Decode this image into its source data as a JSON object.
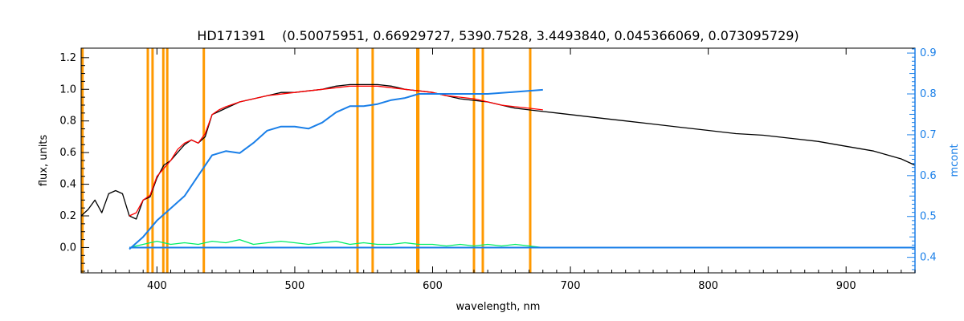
{
  "chart_data": {
    "type": "line",
    "title": "HD171391    (0.50075951, 0.66929727, 5390.7528, 3.4493840, 0.045366069, 0.073095729)",
    "xlabel": "wavelength, nm",
    "ylabel": "flux, units",
    "ylabel_right": "mcont",
    "xlim": [
      345,
      950
    ],
    "ylim": [
      -0.16,
      1.26
    ],
    "ylim_right": [
      0.362,
      0.912
    ],
    "x_ticks": [
      400,
      500,
      600,
      700,
      800,
      900
    ],
    "x_tick_labels": [
      "400",
      "500",
      "600",
      "700",
      "800",
      "900"
    ],
    "y_ticks": [
      0.0,
      0.2,
      0.4,
      0.6,
      0.8,
      1.0,
      1.2
    ],
    "y_tick_labels": [
      "0.0",
      "0.2",
      "0.4",
      "0.6",
      "0.8",
      "1.0",
      "1.2"
    ],
    "y_right_ticks": [
      0.4,
      0.5,
      0.6,
      0.7,
      0.8,
      0.9
    ],
    "y_right_tick_labels": [
      "0.4",
      "0.5",
      "0.6",
      "0.7",
      "0.8",
      "0.9"
    ],
    "grid": false,
    "vertical_lines": {
      "color": "#ff9900",
      "x": [
        346,
        393.4,
        396.8,
        404.6,
        407.5,
        434.0,
        545.5,
        556.5,
        588.9,
        589.6,
        630.0,
        636.4,
        670.8
      ]
    },
    "series": [
      {
        "key": "observed",
        "color": "#000000",
        "x": [
          345,
          350,
          355,
          360,
          365,
          370,
          375,
          380,
          385,
          390,
          395,
          400,
          405,
          410,
          415,
          420,
          425,
          430,
          435,
          440,
          445,
          450,
          460,
          470,
          480,
          490,
          500,
          510,
          520,
          530,
          540,
          550,
          560,
          570,
          580,
          590,
          600,
          610,
          620,
          630,
          640,
          650,
          660,
          670,
          680,
          690,
          700,
          720,
          740,
          760,
          780,
          800,
          820,
          840,
          860,
          880,
          900,
          920,
          940,
          950
        ],
        "y": [
          0.2,
          0.24,
          0.3,
          0.22,
          0.34,
          0.36,
          0.34,
          0.2,
          0.18,
          0.3,
          0.32,
          0.44,
          0.52,
          0.55,
          0.6,
          0.65,
          0.68,
          0.66,
          0.7,
          0.84,
          0.86,
          0.88,
          0.92,
          0.94,
          0.96,
          0.98,
          0.98,
          0.99,
          1.0,
          1.02,
          1.03,
          1.03,
          1.03,
          1.02,
          1.0,
          0.99,
          0.98,
          0.96,
          0.94,
          0.93,
          0.92,
          0.9,
          0.88,
          0.87,
          0.86,
          0.85,
          0.84,
          0.82,
          0.8,
          0.78,
          0.76,
          0.74,
          0.72,
          0.71,
          0.69,
          0.67,
          0.64,
          0.61,
          0.56,
          0.52
        ]
      },
      {
        "key": "model",
        "color": "#ff0000",
        "x": [
          380,
          385,
          390,
          395,
          400,
          405,
          410,
          415,
          420,
          425,
          430,
          435,
          440,
          445,
          450,
          460,
          470,
          480,
          490,
          500,
          510,
          520,
          530,
          540,
          550,
          560,
          570,
          580,
          590,
          600,
          610,
          620,
          630,
          640,
          650,
          660,
          670,
          680
        ],
        "y": [
          0.2,
          0.22,
          0.3,
          0.33,
          0.45,
          0.5,
          0.55,
          0.62,
          0.66,
          0.68,
          0.66,
          0.72,
          0.84,
          0.87,
          0.89,
          0.92,
          0.94,
          0.96,
          0.97,
          0.98,
          0.99,
          1.0,
          1.01,
          1.02,
          1.02,
          1.02,
          1.01,
          1.0,
          0.99,
          0.98,
          0.96,
          0.95,
          0.94,
          0.92,
          0.9,
          0.89,
          0.88,
          0.87
        ]
      },
      {
        "key": "residuals",
        "color": "#00ee66",
        "x": [
          380,
          390,
          400,
          410,
          420,
          430,
          440,
          450,
          460,
          470,
          480,
          490,
          500,
          510,
          520,
          530,
          540,
          550,
          560,
          570,
          580,
          590,
          600,
          610,
          620,
          630,
          640,
          650,
          660,
          670,
          680
        ],
        "y": [
          0.0,
          0.02,
          0.04,
          0.02,
          0.03,
          0.02,
          0.04,
          0.03,
          0.05,
          0.02,
          0.03,
          0.04,
          0.03,
          0.02,
          0.03,
          0.04,
          0.02,
          0.03,
          0.02,
          0.02,
          0.03,
          0.02,
          0.02,
          0.01,
          0.02,
          0.01,
          0.02,
          0.01,
          0.02,
          0.01,
          0.0
        ]
      },
      {
        "key": "continuum",
        "color": "#1a7fe8",
        "axis": "right",
        "x": [
          380,
          390,
          400,
          410,
          420,
          430,
          440,
          450,
          460,
          470,
          480,
          490,
          500,
          510,
          520,
          530,
          540,
          550,
          560,
          570,
          580,
          590,
          600,
          620,
          640,
          660,
          680
        ],
        "y": [
          0.42,
          0.45,
          0.49,
          0.52,
          0.55,
          0.6,
          0.65,
          0.66,
          0.655,
          0.68,
          0.71,
          0.72,
          0.72,
          0.715,
          0.73,
          0.755,
          0.77,
          0.77,
          0.775,
          0.785,
          0.79,
          0.8,
          0.8,
          0.8,
          0.8,
          0.805,
          0.81
        ]
      },
      {
        "key": "baseline",
        "color": "#1a7fe8",
        "x": [
          380,
          950
        ],
        "y": [
          0.0,
          0.0
        ]
      }
    ]
  }
}
